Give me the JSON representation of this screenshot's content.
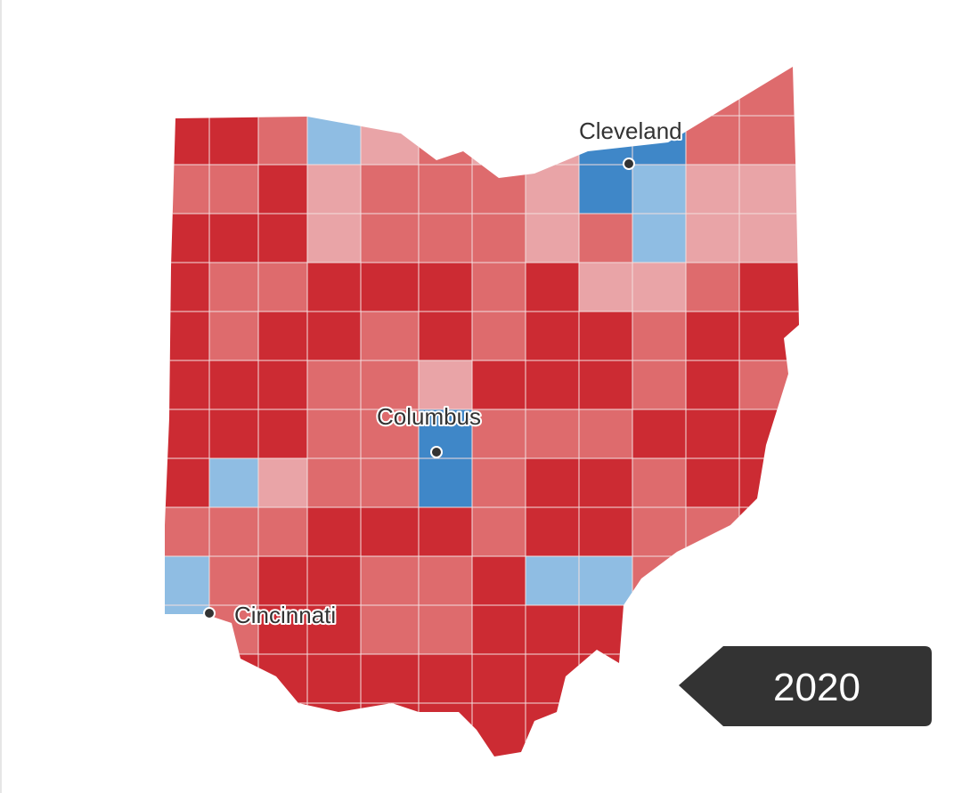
{
  "cities": [
    {
      "label": "Cleveland"
    },
    {
      "label": "Columbus"
    },
    {
      "label": "Cincinnati"
    }
  ],
  "year_badge": "2020"
}
